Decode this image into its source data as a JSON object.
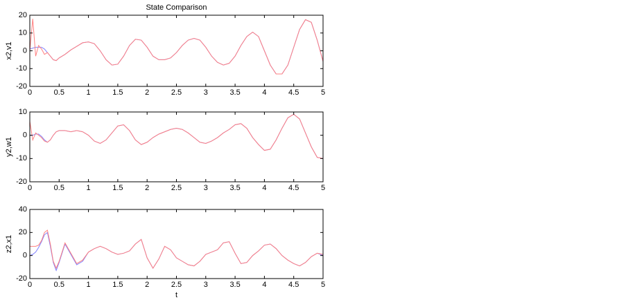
{
  "chart_data": [
    {
      "type": "line",
      "title": "State Comparison",
      "ylabel": "x2,v1",
      "x": [
        0,
        0.05,
        0.1,
        0.15,
        0.2,
        0.25,
        0.3,
        0.35,
        0.4,
        0.45,
        0.5,
        0.6,
        0.7,
        0.8,
        0.9,
        1,
        1.1,
        1.2,
        1.3,
        1.4,
        1.5,
        1.6,
        1.7,
        1.8,
        1.9,
        2,
        2.1,
        2.2,
        2.3,
        2.4,
        2.5,
        2.6,
        2.7,
        2.8,
        2.9,
        3,
        3.1,
        3.2,
        3.3,
        3.4,
        3.5,
        3.6,
        3.7,
        3.8,
        3.9,
        4,
        4.1,
        4.2,
        4.3,
        4.4,
        4.5,
        4.6,
        4.7,
        4.8,
        4.9,
        5
      ],
      "series": [
        {
          "color": "#8080ff",
          "values": [
            1,
            1.5,
            2,
            2,
            2,
            1,
            -1,
            -3,
            -5,
            -5.5,
            -4,
            -2,
            0.5,
            2.5,
            4.5,
            5,
            4,
            0,
            -5,
            -8,
            -7.5,
            -3,
            3,
            6.5,
            6,
            2,
            -3,
            -5,
            -5,
            -4,
            -1,
            3,
            6,
            7,
            6,
            2,
            -3,
            -6.5,
            -8,
            -7,
            -3,
            3,
            8,
            10.5,
            8,
            0,
            -8,
            -13,
            -13,
            -8,
            2,
            12,
            17.5,
            16,
            6,
            -6
          ]
        },
        {
          "color": "#ff8080",
          "values": [
            0,
            18,
            -3,
            3,
            1,
            -2,
            -1,
            -3,
            -5,
            -5.5,
            -4,
            -2,
            0.5,
            2.5,
            4.5,
            5,
            4,
            0,
            -5,
            -8,
            -7.5,
            -3,
            3,
            6.5,
            6,
            2,
            -3,
            -5,
            -5,
            -4,
            -1,
            3,
            6,
            7,
            6,
            2,
            -3,
            -6.5,
            -8,
            -7,
            -3,
            3,
            8,
            10.5,
            8,
            0,
            -8,
            -13,
            -13,
            -8,
            2,
            12,
            17.5,
            16,
            6,
            -6
          ]
        }
      ],
      "xlim": [
        0,
        5
      ],
      "xticks": [
        0,
        0.5,
        1,
        1.5,
        2,
        2.5,
        3,
        3.5,
        4,
        4.5,
        5
      ],
      "ylim": [
        -20,
        20
      ],
      "yticks": [
        -20,
        -10,
        0,
        10,
        20
      ]
    },
    {
      "type": "line",
      "ylabel": "y2,w1",
      "x": [
        0,
        0.05,
        0.1,
        0.15,
        0.2,
        0.25,
        0.3,
        0.35,
        0.4,
        0.45,
        0.5,
        0.6,
        0.7,
        0.8,
        0.9,
        1,
        1.1,
        1.2,
        1.3,
        1.4,
        1.5,
        1.6,
        1.7,
        1.8,
        1.9,
        2,
        2.1,
        2.2,
        2.3,
        2.4,
        2.5,
        2.6,
        2.7,
        2.8,
        2.9,
        3,
        3.1,
        3.2,
        3.3,
        3.4,
        3.5,
        3.6,
        3.7,
        3.8,
        3.9,
        4,
        4.1,
        4.2,
        4.3,
        4.4,
        4.5,
        4.6,
        4.7,
        4.8,
        4.9,
        5
      ],
      "series": [
        {
          "color": "#8080ff",
          "values": [
            0,
            0,
            0.5,
            0.5,
            -0.5,
            -2,
            -3,
            -2,
            0,
            1.5,
            2,
            2,
            1.5,
            2,
            1.5,
            0,
            -2.5,
            -3.5,
            -2,
            1,
            4,
            4.5,
            2,
            -2,
            -4,
            -3,
            -1,
            0.5,
            1.5,
            2.5,
            3,
            2.5,
            1,
            -1,
            -3,
            -3.5,
            -2.5,
            -1,
            1,
            2.5,
            4.5,
            5,
            3,
            -1,
            -4,
            -6.5,
            -6,
            -2,
            3,
            7.5,
            9,
            7,
            1,
            -5,
            -9.5,
            -10
          ]
        },
        {
          "color": "#ff8080",
          "values": [
            6,
            -2,
            1,
            0,
            -1,
            -2.5,
            -3,
            -2,
            0,
            1.5,
            2,
            2,
            1.5,
            2,
            1.5,
            0,
            -2.5,
            -3.5,
            -2,
            1,
            4,
            4.5,
            2,
            -2,
            -4,
            -3,
            -1,
            0.5,
            1.5,
            2.5,
            3,
            2.5,
            1,
            -1,
            -3,
            -3.5,
            -2.5,
            -1,
            1,
            2.5,
            4.5,
            5,
            3,
            -1,
            -4,
            -6.5,
            -6,
            -2,
            3,
            7.5,
            9,
            7,
            1,
            -5,
            -9.5,
            -10
          ]
        }
      ],
      "xlim": [
        0,
        5
      ],
      "xticks": [
        0,
        0.5,
        1,
        1.5,
        2,
        2.5,
        3,
        3.5,
        4,
        4.5,
        5
      ],
      "ylim": [
        -20,
        10
      ],
      "yticks": [
        -20,
        -10,
        0,
        10
      ]
    },
    {
      "type": "line",
      "ylabel": "z2,x1",
      "xlabel": "t",
      "x": [
        0,
        0.05,
        0.1,
        0.15,
        0.2,
        0.25,
        0.3,
        0.35,
        0.4,
        0.45,
        0.5,
        0.6,
        0.7,
        0.8,
        0.9,
        1,
        1.1,
        1.2,
        1.3,
        1.4,
        1.5,
        1.6,
        1.7,
        1.8,
        1.9,
        2,
        2.1,
        2.2,
        2.3,
        2.4,
        2.5,
        2.6,
        2.7,
        2.8,
        2.9,
        3,
        3.1,
        3.2,
        3.3,
        3.4,
        3.5,
        3.6,
        3.7,
        3.8,
        3.9,
        4,
        4.1,
        4.2,
        4.3,
        4.4,
        4.5,
        4.6,
        4.7,
        4.8,
        4.9,
        5
      ],
      "series": [
        {
          "color": "#8080ff",
          "values": [
            0,
            1,
            3,
            7,
            12,
            18,
            20,
            8,
            -6,
            -13,
            -6,
            10,
            1,
            -8,
            -5,
            3,
            6,
            8,
            6,
            3,
            1,
            2,
            4,
            10,
            14,
            -2,
            -11,
            -3,
            8,
            5,
            -2,
            -5,
            -8,
            -9,
            -5,
            1,
            3,
            5,
            11,
            12,
            2,
            -7,
            -6,
            0,
            4,
            9,
            10,
            6,
            0,
            -4,
            -7,
            -9,
            -6,
            -1,
            2,
            0
          ]
        },
        {
          "color": "#ff8080",
          "values": [
            8,
            8,
            8,
            9,
            13,
            20,
            22,
            10,
            -5,
            -11,
            -5,
            11,
            2,
            -7,
            -4,
            3,
            6,
            8,
            6,
            3,
            1,
            2,
            4,
            10,
            14,
            -2,
            -11,
            -3,
            8,
            5,
            -2,
            -5,
            -8,
            -9,
            -5,
            1,
            3,
            5,
            11,
            12,
            2,
            -7,
            -6,
            0,
            4,
            9,
            10,
            6,
            0,
            -4,
            -7,
            -9,
            -6,
            -1,
            2,
            1
          ]
        }
      ],
      "xlim": [
        0,
        5
      ],
      "xticks": [
        0,
        0.5,
        1,
        1.5,
        2,
        2.5,
        3,
        3.5,
        4,
        4.5,
        5
      ],
      "ylim": [
        -20,
        40
      ],
      "yticks": [
        -20,
        0,
        20,
        40
      ]
    }
  ]
}
